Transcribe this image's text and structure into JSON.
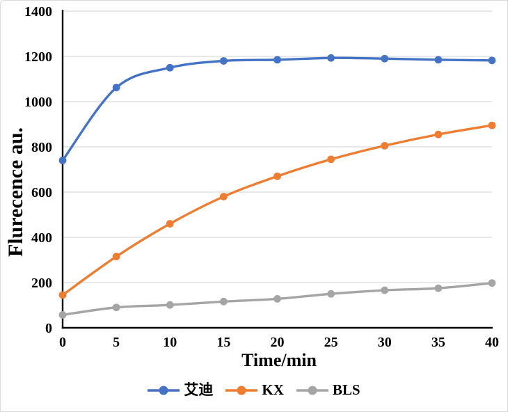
{
  "frame": {
    "background": "#FFFFFF",
    "border_color": "#D9D9D9"
  },
  "chart_data": {
    "type": "line",
    "title": "",
    "xlabel": "Time/min",
    "ylabel": "Flurecence au.",
    "x": [
      0,
      5,
      10,
      15,
      20,
      25,
      30,
      35,
      40
    ],
    "xticks": [
      "0",
      "5",
      "10",
      "15",
      "20",
      "25",
      "30",
      "35",
      "40"
    ],
    "yticks": [
      "0",
      "200",
      "400",
      "600",
      "800",
      "1000",
      "1200",
      "1400"
    ],
    "ytick_values": [
      0,
      200,
      400,
      600,
      800,
      1000,
      1200,
      1400
    ],
    "xlim": [
      0,
      40
    ],
    "ylim": [
      0,
      1400
    ],
    "grid": "horizontal",
    "gridline_color": "#D9D9D9",
    "axis_color": "#000000",
    "text_color": "#000000",
    "line_style": "smooth",
    "marker": "circle",
    "legend_position": "bottom-center",
    "series": [
      {
        "name": "艾迪",
        "color": "#4472C4",
        "values": [
          740,
          1062,
          1150,
          1180,
          1185,
          1193,
          1190,
          1185,
          1182
        ]
      },
      {
        "name": "KX",
        "color": "#ED7D31",
        "values": [
          145,
          315,
          460,
          580,
          670,
          745,
          805,
          855,
          895
        ]
      },
      {
        "name": "BLS",
        "color": "#A5A5A5",
        "values": [
          57,
          90,
          101,
          116,
          128,
          150,
          166,
          175,
          198
        ]
      }
    ]
  }
}
